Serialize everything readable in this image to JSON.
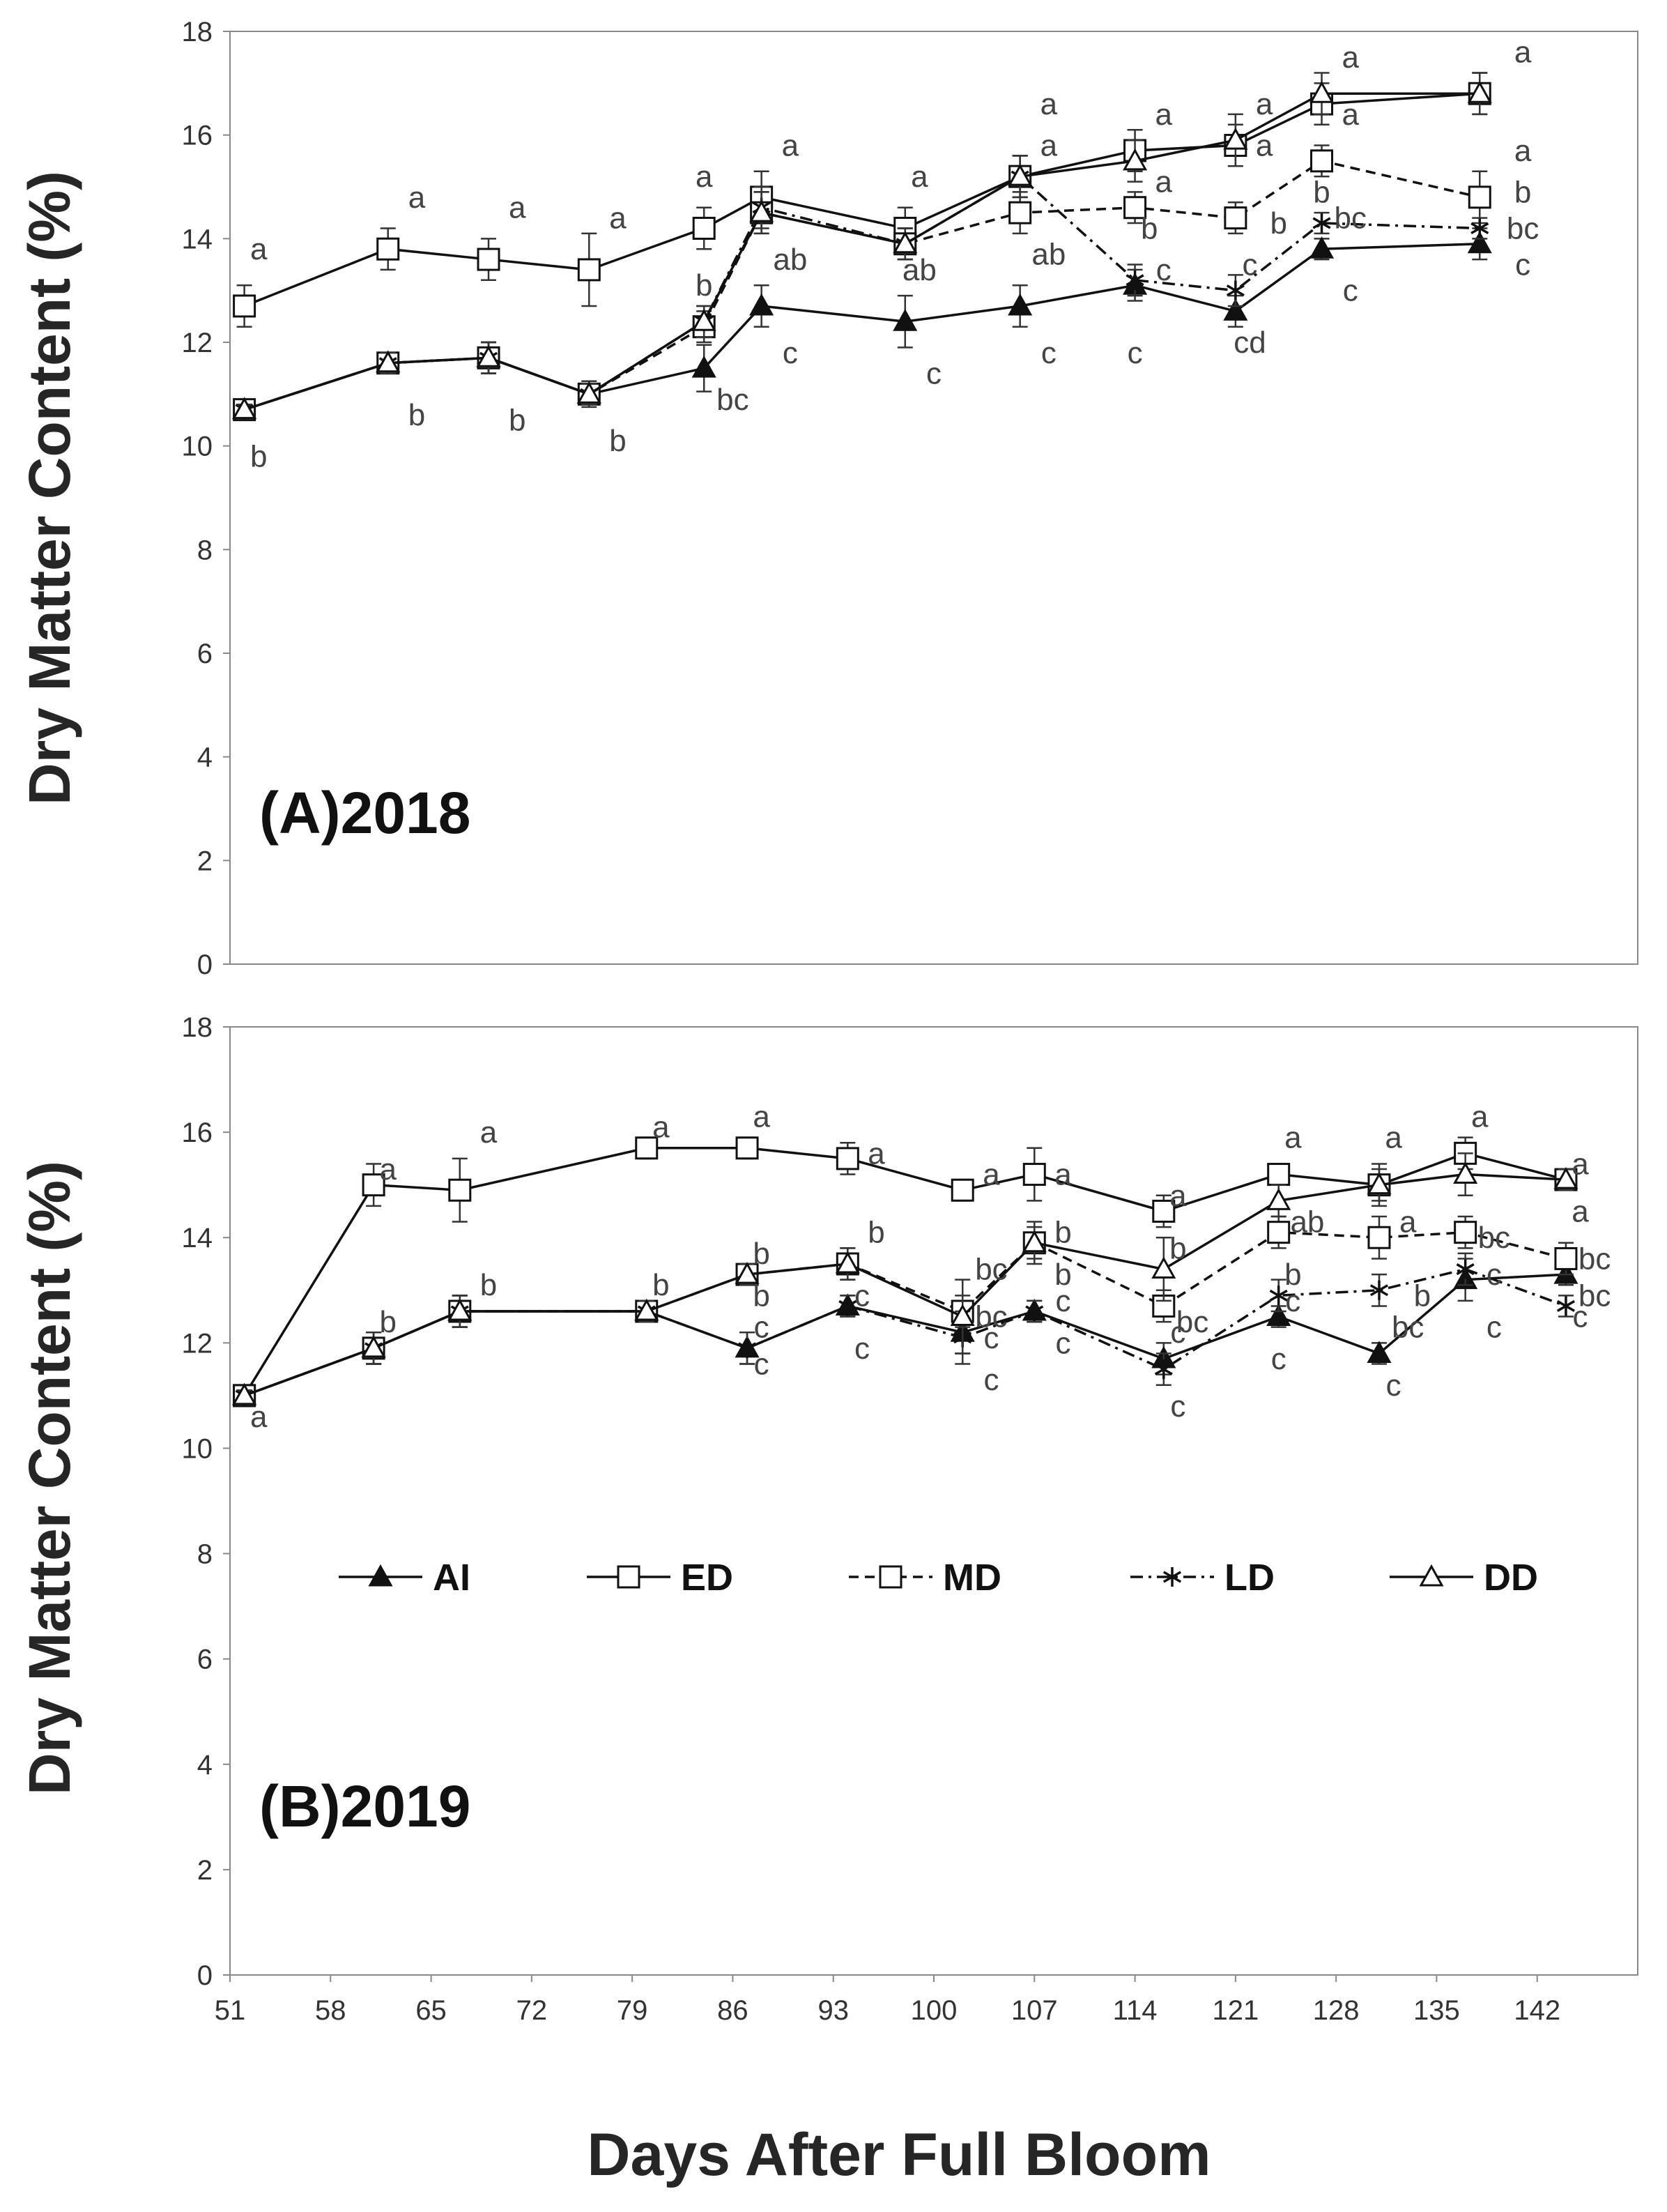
{
  "figure": {
    "xlabel": "Days After Full Bloom",
    "ylabel": "Dry Matter Content (%)"
  },
  "legend": [
    {
      "name": "AI",
      "marker": "filled-triangle",
      "dash": "solid"
    },
    {
      "name": "ED",
      "marker": "open-square",
      "dash": "solid"
    },
    {
      "name": "MD",
      "marker": "open-square",
      "dash": "dashed"
    },
    {
      "name": "LD",
      "marker": "asterisk",
      "dash": "dashdot"
    },
    {
      "name": "DD",
      "marker": "open-triangle",
      "dash": "solid"
    }
  ],
  "chart_data": [
    {
      "type": "line",
      "title": "(A)2018",
      "xlabel": "Days After Full Bloom",
      "ylabel": "Dry Matter Content (%)",
      "xlim": [
        51,
        149
      ],
      "ylim": [
        0,
        18
      ],
      "yticks": [
        0,
        2,
        4,
        6,
        8,
        10,
        12,
        14,
        16,
        18
      ],
      "series": [
        {
          "name": "AI",
          "x": [
            52,
            62,
            69,
            76,
            84,
            88,
            98,
            106,
            114,
            121,
            127,
            138
          ],
          "values": [
            10.7,
            11.6,
            11.7,
            11.0,
            11.5,
            12.7,
            12.4,
            12.7,
            13.1,
            12.6,
            13.8,
            13.9
          ],
          "err": [
            0.15,
            0.2,
            0.3,
            0.25,
            0.45,
            0.4,
            0.5,
            0.4,
            0.3,
            0.3,
            0.2,
            0.3
          ]
        },
        {
          "name": "ED",
          "x": [
            52,
            62,
            69,
            76,
            84,
            88,
            98,
            106,
            114,
            121,
            127,
            138
          ],
          "values": [
            12.7,
            13.8,
            13.6,
            13.4,
            14.2,
            14.8,
            14.2,
            15.2,
            15.7,
            15.8,
            16.6,
            16.8
          ],
          "err": [
            0.4,
            0.4,
            0.4,
            0.7,
            0.4,
            0.5,
            0.4,
            0.4,
            0.4,
            0.4,
            0.4,
            0.4
          ]
        },
        {
          "name": "MD",
          "x": [
            52,
            62,
            69,
            76,
            84,
            88,
            98,
            106,
            114,
            121,
            127,
            138
          ],
          "values": [
            10.7,
            11.6,
            11.7,
            11.0,
            12.3,
            14.5,
            13.9,
            14.5,
            14.6,
            14.4,
            15.5,
            14.8
          ],
          "err": [
            0.1,
            0.2,
            0.3,
            0.2,
            0.3,
            0.4,
            0.3,
            0.4,
            0.3,
            0.3,
            0.3,
            0.5
          ]
        },
        {
          "name": "LD",
          "x": [
            52,
            62,
            69,
            76,
            84,
            88,
            98,
            106,
            114,
            121,
            127,
            138
          ],
          "values": [
            10.7,
            11.6,
            11.7,
            11.0,
            12.4,
            14.6,
            13.9,
            15.2,
            13.2,
            13.0,
            14.3,
            14.2
          ],
          "err": [
            0.1,
            0.2,
            0.3,
            0.2,
            0.3,
            0.4,
            0.3,
            0.4,
            0.3,
            0.3,
            0.2,
            0.2
          ]
        },
        {
          "name": "DD",
          "x": [
            52,
            62,
            69,
            76,
            84,
            88,
            98,
            106,
            114,
            121,
            127,
            138
          ],
          "values": [
            10.7,
            11.6,
            11.7,
            11.0,
            12.4,
            14.5,
            13.9,
            15.2,
            15.5,
            15.9,
            16.8,
            16.8
          ],
          "err": [
            0.1,
            0.2,
            0.3,
            0.2,
            0.3,
            0.4,
            0.3,
            0.4,
            0.4,
            0.5,
            0.4,
            0.4
          ]
        }
      ],
      "annotations": [
        {
          "x": 53,
          "y": 13.8,
          "text": "a"
        },
        {
          "x": 53,
          "y": 9.8,
          "text": "b"
        },
        {
          "x": 64,
          "y": 14.8,
          "text": "a"
        },
        {
          "x": 64,
          "y": 10.6,
          "text": "b"
        },
        {
          "x": 71,
          "y": 14.6,
          "text": "a"
        },
        {
          "x": 71,
          "y": 10.5,
          "text": "b"
        },
        {
          "x": 78,
          "y": 14.4,
          "text": "a"
        },
        {
          "x": 78,
          "y": 10.1,
          "text": "b"
        },
        {
          "x": 84,
          "y": 15.2,
          "text": "a"
        },
        {
          "x": 84,
          "y": 13.1,
          "text": "b"
        },
        {
          "x": 86,
          "y": 10.9,
          "text": "bc"
        },
        {
          "x": 90,
          "y": 15.8,
          "text": "a"
        },
        {
          "x": 90,
          "y": 13.6,
          "text": "ab"
        },
        {
          "x": 90,
          "y": 11.8,
          "text": "c"
        },
        {
          "x": 99,
          "y": 15.2,
          "text": "a"
        },
        {
          "x": 99,
          "y": 13.4,
          "text": "ab"
        },
        {
          "x": 100,
          "y": 11.4,
          "text": "c"
        },
        {
          "x": 108,
          "y": 16.6,
          "text": "a"
        },
        {
          "x": 108,
          "y": 15.8,
          "text": "a"
        },
        {
          "x": 108,
          "y": 13.7,
          "text": "ab"
        },
        {
          "x": 108,
          "y": 11.8,
          "text": "c"
        },
        {
          "x": 116,
          "y": 16.4,
          "text": "a"
        },
        {
          "x": 116,
          "y": 15.1,
          "text": "a"
        },
        {
          "x": 115,
          "y": 14.2,
          "text": "b"
        },
        {
          "x": 116,
          "y": 13.4,
          "text": "c"
        },
        {
          "x": 114,
          "y": 11.8,
          "text": "c"
        },
        {
          "x": 123,
          "y": 16.6,
          "text": "a"
        },
        {
          "x": 123,
          "y": 15.8,
          "text": "a"
        },
        {
          "x": 124,
          "y": 14.3,
          "text": "b"
        },
        {
          "x": 122,
          "y": 13.5,
          "text": "c"
        },
        {
          "x": 122,
          "y": 12.0,
          "text": "cd"
        },
        {
          "x": 129,
          "y": 17.5,
          "text": "a"
        },
        {
          "x": 129,
          "y": 16.4,
          "text": "a"
        },
        {
          "x": 127,
          "y": 14.9,
          "text": "b"
        },
        {
          "x": 129,
          "y": 14.4,
          "text": "bc"
        },
        {
          "x": 129,
          "y": 13.0,
          "text": "c"
        },
        {
          "x": 141,
          "y": 17.6,
          "text": "a"
        },
        {
          "x": 141,
          "y": 15.7,
          "text": "a"
        },
        {
          "x": 141,
          "y": 14.9,
          "text": "b"
        },
        {
          "x": 141,
          "y": 14.2,
          "text": "bc"
        },
        {
          "x": 141,
          "y": 13.5,
          "text": "c"
        }
      ]
    },
    {
      "type": "line",
      "title": "(B)2019",
      "xlabel": "Days After Full Bloom",
      "ylabel": "Dry Matter Content (%)",
      "xlim": [
        51,
        149
      ],
      "ylim": [
        0,
        18
      ],
      "yticks": [
        0,
        2,
        4,
        6,
        8,
        10,
        12,
        14,
        16,
        18
      ],
      "xticks": [
        51,
        58,
        65,
        72,
        79,
        86,
        93,
        100,
        107,
        114,
        121,
        128,
        135,
        142
      ],
      "series": [
        {
          "name": "AI",
          "x": [
            52,
            61,
            67,
            80,
            87,
            94,
            102,
            107,
            116,
            124,
            131,
            137,
            144
          ],
          "values": [
            11.0,
            11.9,
            12.6,
            12.6,
            11.9,
            12.7,
            12.2,
            12.6,
            11.7,
            12.5,
            11.8,
            13.2,
            13.3
          ],
          "err": [
            0.1,
            0.3,
            0.3,
            0.2,
            0.3,
            0.2,
            0.4,
            0.2,
            0.3,
            0.2,
            0.2,
            0.4,
            0.2
          ]
        },
        {
          "name": "ED",
          "x": [
            52,
            61,
            67,
            80,
            87,
            94,
            102,
            107,
            116,
            124,
            131,
            137,
            144
          ],
          "values": [
            11.0,
            15.0,
            14.9,
            15.7,
            15.7,
            15.5,
            14.9,
            15.2,
            14.5,
            15.2,
            15.0,
            15.6,
            15.1
          ],
          "err": [
            0.1,
            0.4,
            0.6,
            0.2,
            0.2,
            0.3,
            0.2,
            0.5,
            0.3,
            0.2,
            0.4,
            0.3,
            0.2
          ]
        },
        {
          "name": "MD",
          "x": [
            52,
            61,
            67,
            80,
            87,
            94,
            102,
            107,
            116,
            124,
            131,
            137,
            144
          ],
          "values": [
            11.0,
            11.9,
            12.6,
            12.6,
            13.3,
            13.5,
            12.6,
            13.9,
            12.7,
            14.1,
            14.0,
            14.1,
            13.6
          ],
          "err": [
            0.1,
            0.3,
            0.3,
            0.2,
            0.2,
            0.3,
            0.3,
            0.3,
            0.3,
            0.3,
            0.4,
            0.3,
            0.3
          ]
        },
        {
          "name": "LD",
          "x": [
            52,
            61,
            67,
            80,
            87,
            94,
            102,
            107,
            116,
            124,
            131,
            137,
            144
          ],
          "values": [
            11.0,
            11.9,
            12.6,
            12.6,
            11.9,
            12.7,
            12.1,
            12.6,
            11.5,
            12.9,
            13.0,
            13.4,
            12.7
          ],
          "err": [
            0.1,
            0.3,
            0.3,
            0.2,
            0.3,
            0.2,
            0.5,
            0.2,
            0.3,
            0.3,
            0.3,
            0.3,
            0.2
          ]
        },
        {
          "name": "DD",
          "x": [
            52,
            61,
            67,
            80,
            87,
            94,
            102,
            107,
            116,
            124,
            131,
            137,
            144
          ],
          "values": [
            11.0,
            11.9,
            12.6,
            12.6,
            13.3,
            13.5,
            12.5,
            13.9,
            13.4,
            14.7,
            15.0,
            15.2,
            15.1
          ],
          "err": [
            0.1,
            0.3,
            0.3,
            0.2,
            0.2,
            0.3,
            0.7,
            0.4,
            0.6,
            0.3,
            0.3,
            0.4,
            0.2
          ]
        }
      ],
      "annotations": [
        {
          "x": 53,
          "y": 10.6,
          "text": "a"
        },
        {
          "x": 62,
          "y": 15.3,
          "text": "a"
        },
        {
          "x": 62,
          "y": 12.4,
          "text": "b"
        },
        {
          "x": 69,
          "y": 16.0,
          "text": "a"
        },
        {
          "x": 69,
          "y": 13.1,
          "text": "b"
        },
        {
          "x": 81,
          "y": 16.1,
          "text": "a"
        },
        {
          "x": 81,
          "y": 13.1,
          "text": "b"
        },
        {
          "x": 88,
          "y": 16.3,
          "text": "a"
        },
        {
          "x": 88,
          "y": 13.7,
          "text": "b"
        },
        {
          "x": 88,
          "y": 12.9,
          "text": "b"
        },
        {
          "x": 88,
          "y": 12.3,
          "text": "c"
        },
        {
          "x": 88,
          "y": 11.6,
          "text": "c"
        },
        {
          "x": 96,
          "y": 15.6,
          "text": "a"
        },
        {
          "x": 96,
          "y": 14.1,
          "text": "b"
        },
        {
          "x": 95,
          "y": 12.9,
          "text": "c"
        },
        {
          "x": 95,
          "y": 11.9,
          "text": "c"
        },
        {
          "x": 104,
          "y": 15.2,
          "text": "a"
        },
        {
          "x": 104,
          "y": 13.4,
          "text": "bc"
        },
        {
          "x": 104,
          "y": 12.5,
          "text": "bc"
        },
        {
          "x": 104,
          "y": 12.1,
          "text": "c"
        },
        {
          "x": 104,
          "y": 11.3,
          "text": "c"
        },
        {
          "x": 109,
          "y": 15.2,
          "text": "a"
        },
        {
          "x": 109,
          "y": 14.1,
          "text": "b"
        },
        {
          "x": 109,
          "y": 13.3,
          "text": "b"
        },
        {
          "x": 109,
          "y": 12.8,
          "text": "c"
        },
        {
          "x": 109,
          "y": 12.0,
          "text": "c"
        },
        {
          "x": 117,
          "y": 14.8,
          "text": "a"
        },
        {
          "x": 117,
          "y": 13.8,
          "text": "b"
        },
        {
          "x": 118,
          "y": 12.4,
          "text": "bc"
        },
        {
          "x": 117,
          "y": 12.2,
          "text": "c"
        },
        {
          "x": 117,
          "y": 10.8,
          "text": "c"
        },
        {
          "x": 125,
          "y": 15.9,
          "text": "a"
        },
        {
          "x": 126,
          "y": 14.3,
          "text": "ab"
        },
        {
          "x": 125,
          "y": 13.3,
          "text": "b"
        },
        {
          "x": 125,
          "y": 12.8,
          "text": "c"
        },
        {
          "x": 124,
          "y": 11.7,
          "text": "c"
        },
        {
          "x": 132,
          "y": 15.9,
          "text": "a"
        },
        {
          "x": 133,
          "y": 14.3,
          "text": "a"
        },
        {
          "x": 134,
          "y": 12.9,
          "text": "b"
        },
        {
          "x": 133,
          "y": 12.3,
          "text": "bc"
        },
        {
          "x": 132,
          "y": 11.2,
          "text": "c"
        },
        {
          "x": 138,
          "y": 16.3,
          "text": "a"
        },
        {
          "x": 139,
          "y": 14.0,
          "text": "bc"
        },
        {
          "x": 139,
          "y": 13.3,
          "text": "c"
        },
        {
          "x": 139,
          "y": 12.3,
          "text": "c"
        },
        {
          "x": 145,
          "y": 15.4,
          "text": "a"
        },
        {
          "x": 145,
          "y": 14.5,
          "text": "a"
        },
        {
          "x": 146,
          "y": 13.6,
          "text": "bc"
        },
        {
          "x": 146,
          "y": 12.9,
          "text": "bc"
        },
        {
          "x": 145,
          "y": 12.5,
          "text": "c"
        }
      ]
    }
  ]
}
